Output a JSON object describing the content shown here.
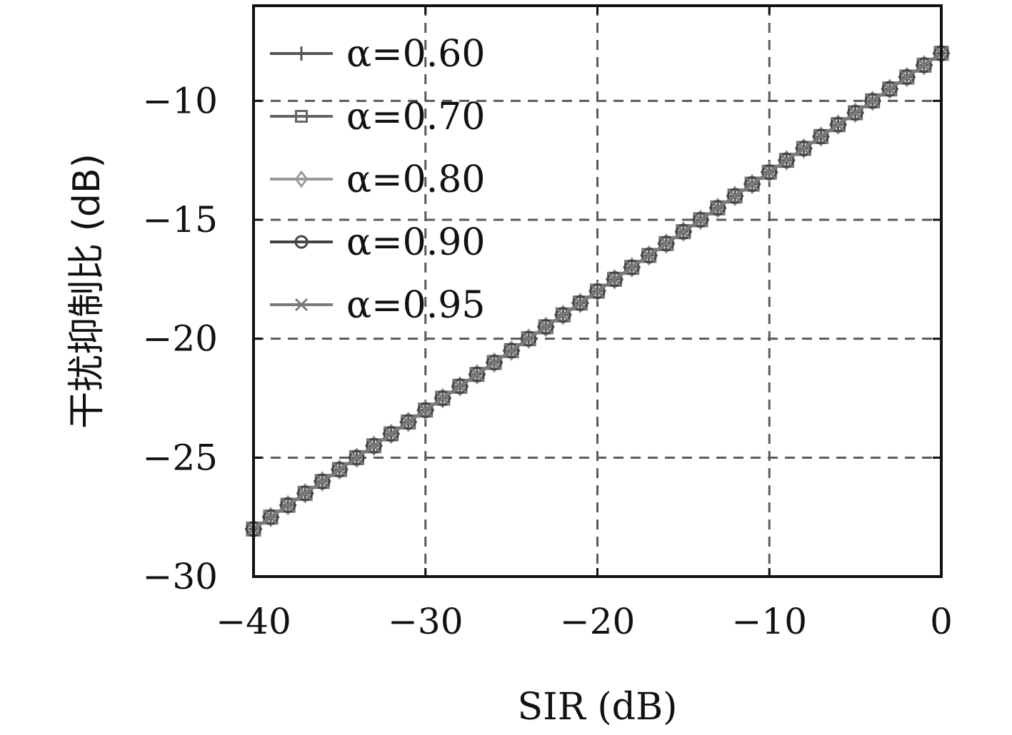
{
  "chart_data": {
    "type": "line",
    "title": "",
    "xlabel": "SIR (dB)",
    "ylabel": "干扰抑制比 (dB)",
    "xlim": [
      -40,
      0
    ],
    "ylim": [
      -30,
      -6
    ],
    "xticks": [
      -40,
      -30,
      -20,
      -10,
      0
    ],
    "yticks": [
      -30,
      -25,
      -20,
      -15,
      -10
    ],
    "xtick_labels": [
      "−40",
      "−30",
      "−20",
      "−10",
      "0"
    ],
    "ytick_labels": [
      "−30",
      "−25",
      "−20",
      "−15",
      "−10"
    ],
    "grid": true,
    "legend_position": "top-left",
    "x": [
      -40,
      -39,
      -38,
      -37,
      -36,
      -35,
      -34,
      -33,
      -32,
      -31,
      -30,
      -29,
      -28,
      -27,
      -26,
      -25,
      -24,
      -23,
      -22,
      -21,
      -20,
      -19,
      -18,
      -17,
      -16,
      -15,
      -14,
      -13,
      -12,
      -11,
      -10,
      -9,
      -8,
      -7,
      -6,
      -5,
      -4,
      -3,
      -2,
      -1,
      0
    ],
    "series": [
      {
        "name": "α=0.60",
        "marker": "plus",
        "color": "#555555",
        "slope": 0.5,
        "intercept": -8.0
      },
      {
        "name": "α=0.70",
        "marker": "square",
        "color": "#666666",
        "slope": 0.5,
        "intercept": -8.0
      },
      {
        "name": "α=0.80",
        "marker": "diamond",
        "color": "#9a9a9a",
        "slope": 0.5,
        "intercept": -8.0
      },
      {
        "name": "α=0.90",
        "marker": "circle",
        "color": "#444444",
        "slope": 0.5,
        "intercept": -8.0
      },
      {
        "name": "α=0.95",
        "marker": "cross",
        "color": "#7a7a7a",
        "slope": 0.5,
        "intercept": -8.0
      }
    ]
  }
}
